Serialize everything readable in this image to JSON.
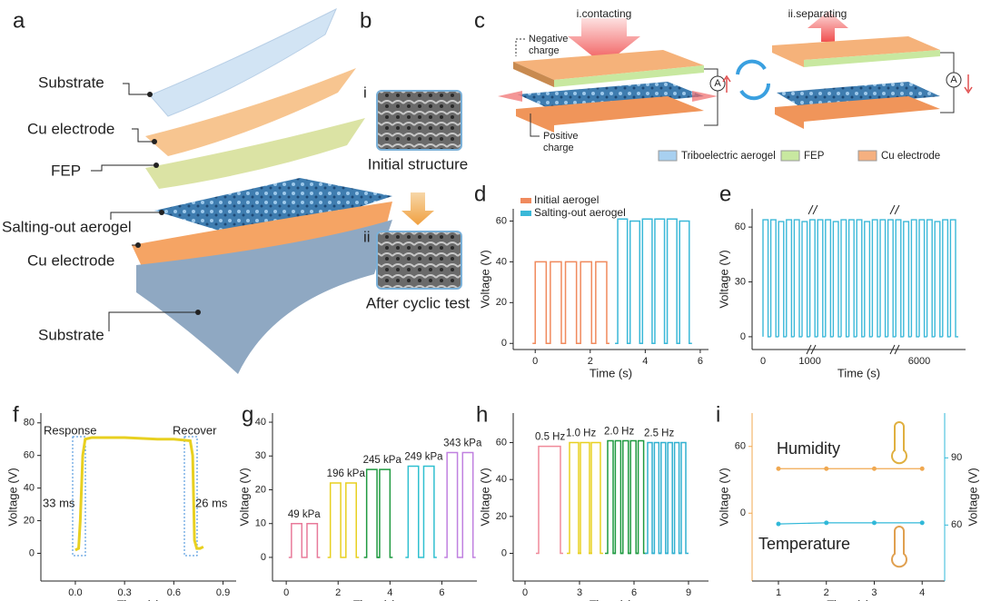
{
  "diagram": {
    "a": {
      "label": "a",
      "layers": [
        "Substrate",
        "Cu electrode",
        "FEP",
        "Salting-out aerogel",
        "Cu electrode",
        "Substrate"
      ]
    },
    "b": {
      "label": "b",
      "steps": [
        {
          "numeral": "i",
          "caption": "Initial structure"
        },
        {
          "numeral": "ii",
          "caption": "After  cyclic test"
        }
      ]
    },
    "c": {
      "label": "c",
      "stages": [
        "i.contacting",
        "ii.separating"
      ],
      "negative_charge": [
        "Negative",
        "charge"
      ],
      "positive_charge": [
        "Positive",
        "charge"
      ],
      "ammeter": "A",
      "legend": [
        {
          "name": "Triboelectric aerogel",
          "color": "#a8d0f0"
        },
        {
          "name": "FEP",
          "color": "#c8e8a0"
        },
        {
          "name": "Cu electrode",
          "color": "#f5b080"
        }
      ]
    }
  },
  "chart_data": [
    {
      "label": "d",
      "type": "pulse",
      "xlabel": "Time (s)",
      "ylabel": "Voltage (V)",
      "xlim": [
        -0.8,
        6.3
      ],
      "ylim": [
        -3,
        66
      ],
      "xticks": [
        0,
        2,
        4,
        6
      ],
      "yticks": [
        0,
        20,
        40,
        60
      ],
      "legend": "upper left",
      "series": [
        {
          "name": "Initial aerogel",
          "color": "#f08a5d",
          "starts": [
            0,
            0.55,
            1.1,
            1.65,
            2.2
          ],
          "ends": [
            0.4,
            0.95,
            1.5,
            2.05,
            2.6
          ],
          "values": [
            40,
            40,
            40,
            40,
            40
          ]
        },
        {
          "name": "Salting-out aerogel",
          "color": "#3ab8d8",
          "starts": [
            3.0,
            3.45,
            3.9,
            4.35,
            4.8,
            5.25
          ],
          "ends": [
            3.35,
            3.8,
            4.25,
            4.7,
            5.15,
            5.6
          ],
          "values": [
            61,
            60,
            61,
            61,
            61,
            60
          ]
        }
      ]
    },
    {
      "label": "e",
      "type": "pulse",
      "xlabel": "Time (s)",
      "ylabel": "Voltage (V)",
      "ylim": [
        -7,
        70
      ],
      "yticks": [
        0,
        30,
        60
      ],
      "color": "#3ab8d8",
      "categories": [
        "0",
        null,
        null,
        null,
        null,
        null,
        "1000",
        null,
        null,
        null,
        null,
        null,
        null,
        null,
        null,
        null,
        null,
        null,
        null,
        null,
        "6000",
        null,
        null,
        null,
        null
      ],
      "values": [
        64,
        64,
        63,
        64,
        64,
        63,
        64,
        64,
        64,
        63,
        64,
        64,
        64,
        63,
        64,
        64,
        64,
        64,
        63,
        64,
        64,
        64,
        63,
        64,
        64
      ]
    },
    {
      "label": "f",
      "type": "line",
      "xlabel": "Time (s)",
      "ylabel": "Voltage (V)",
      "xlim": [
        -0.21,
        0.98
      ],
      "ylim": [
        -17,
        86
      ],
      "xticks": [
        {
          "value": 0,
          "label": "0.0"
        },
        0.3,
        0.6,
        0.9
      ],
      "yticks": [
        0,
        20,
        40,
        60,
        80
      ],
      "color": "#e8d020",
      "x": [
        0.0,
        0.02,
        0.03,
        0.045,
        0.06,
        0.1,
        0.3,
        0.5,
        0.6,
        0.7,
        0.715,
        0.726,
        0.74,
        0.76,
        0.78
      ],
      "values": [
        2,
        3,
        20,
        60,
        70,
        71,
        71,
        70,
        70,
        69,
        60,
        8,
        3,
        3,
        4
      ],
      "annotations": [
        {
          "text": "Response",
          "color": "#222222"
        },
        {
          "text": "Recover",
          "color": "#222222"
        },
        {
          "text": "33 ms",
          "color": "#1a9a50"
        },
        {
          "text": "26 ms",
          "color": "#1a9a50"
        }
      ]
    },
    {
      "label": "g",
      "type": "pulse",
      "xlabel": "Time (s)",
      "ylabel": "Voltage (V)",
      "xlim": [
        -0.53,
        7.35
      ],
      "ylim": [
        -7,
        42.7
      ],
      "xticks": [
        0,
        2,
        4,
        6
      ],
      "yticks": [
        0,
        10,
        20,
        30,
        40
      ],
      "series": [
        {
          "name": "49 kPa",
          "color": "#e87a9a",
          "starts": [
            0.2,
            0.8
          ],
          "ends": [
            0.6,
            1.2
          ],
          "values": [
            10,
            10
          ]
        },
        {
          "name": "196 kPa",
          "color": "#e8d020",
          "starts": [
            1.7,
            2.3
          ],
          "ends": [
            2.1,
            2.7
          ],
          "values": [
            22,
            22
          ]
        },
        {
          "name": "245 kPa",
          "color": "#1f9a40",
          "starts": [
            3.1,
            3.6
          ],
          "ends": [
            3.5,
            4.0
          ],
          "values": [
            26,
            26
          ]
        },
        {
          "name": "249 kPa",
          "color": "#30c0d0",
          "starts": [
            4.7,
            5.3
          ],
          "ends": [
            5.1,
            5.7
          ],
          "values": [
            27,
            27
          ]
        },
        {
          "name": "343 kPa",
          "color": "#c080e0",
          "starts": [
            6.2,
            6.8
          ],
          "ends": [
            6.6,
            7.2
          ],
          "values": [
            31,
            31
          ]
        }
      ]
    },
    {
      "label": "h",
      "type": "pulse",
      "xlabel": "Time (s)",
      "ylabel": "Voltage (V)",
      "xlim": [
        -0.65,
        10.1
      ],
      "ylim": [
        -15,
        76
      ],
      "xticks": [
        0,
        3,
        6,
        9
      ],
      "yticks": [
        0,
        20,
        40,
        60
      ],
      "series": [
        {
          "name": "0.5 Hz",
          "color": "#f08a9a",
          "starts": [
            0.75
          ],
          "ends": [
            1.95
          ],
          "values": [
            58
          ]
        },
        {
          "name": "1.0 Hz",
          "color": "#e8d020",
          "starts": [
            2.45,
            3.05,
            3.65
          ],
          "ends": [
            2.95,
            3.55,
            4.15
          ],
          "values": [
            60,
            60,
            60
          ]
        },
        {
          "name": "2.0 Hz",
          "color": "#1f9a40",
          "starts": [
            4.55,
            4.97,
            5.39,
            5.81,
            6.23
          ],
          "ends": [
            4.85,
            5.27,
            5.69,
            6.11,
            6.53
          ],
          "values": [
            61,
            61,
            61,
            61,
            61
          ]
        },
        {
          "name": "2.5 Hz",
          "color": "#30b0d0",
          "starts": [
            6.75,
            7.12,
            7.49,
            7.86,
            8.23,
            8.6
          ],
          "ends": [
            7.0,
            7.37,
            7.74,
            8.11,
            8.48,
            8.85
          ],
          "values": [
            60,
            60,
            60,
            60,
            60,
            60
          ]
        }
      ]
    },
    {
      "label": "i",
      "type": "line",
      "xlabel": "Time (s)",
      "ylabel": "Voltage (V)",
      "y2label": "Voltage (V)",
      "xlim": [
        0.45,
        4.47
      ],
      "ylim": [
        -61,
        90
      ],
      "y2lim": [
        35,
        110
      ],
      "xticks": [
        1,
        2,
        3,
        4
      ],
      "yticks": [
        0,
        60
      ],
      "y2ticks": [
        60,
        90
      ],
      "markers": true,
      "x": [
        1,
        2,
        3,
        4
      ],
      "series": [
        {
          "name": "Humidity",
          "color": "#f0a850",
          "values": [
            40,
            40,
            40,
            40
          ]
        },
        {
          "name": "Temperature",
          "color": "#30b8d8",
          "values": [
            60.5,
            61,
            61,
            61
          ],
          "axis": "y2"
        }
      ]
    }
  ]
}
